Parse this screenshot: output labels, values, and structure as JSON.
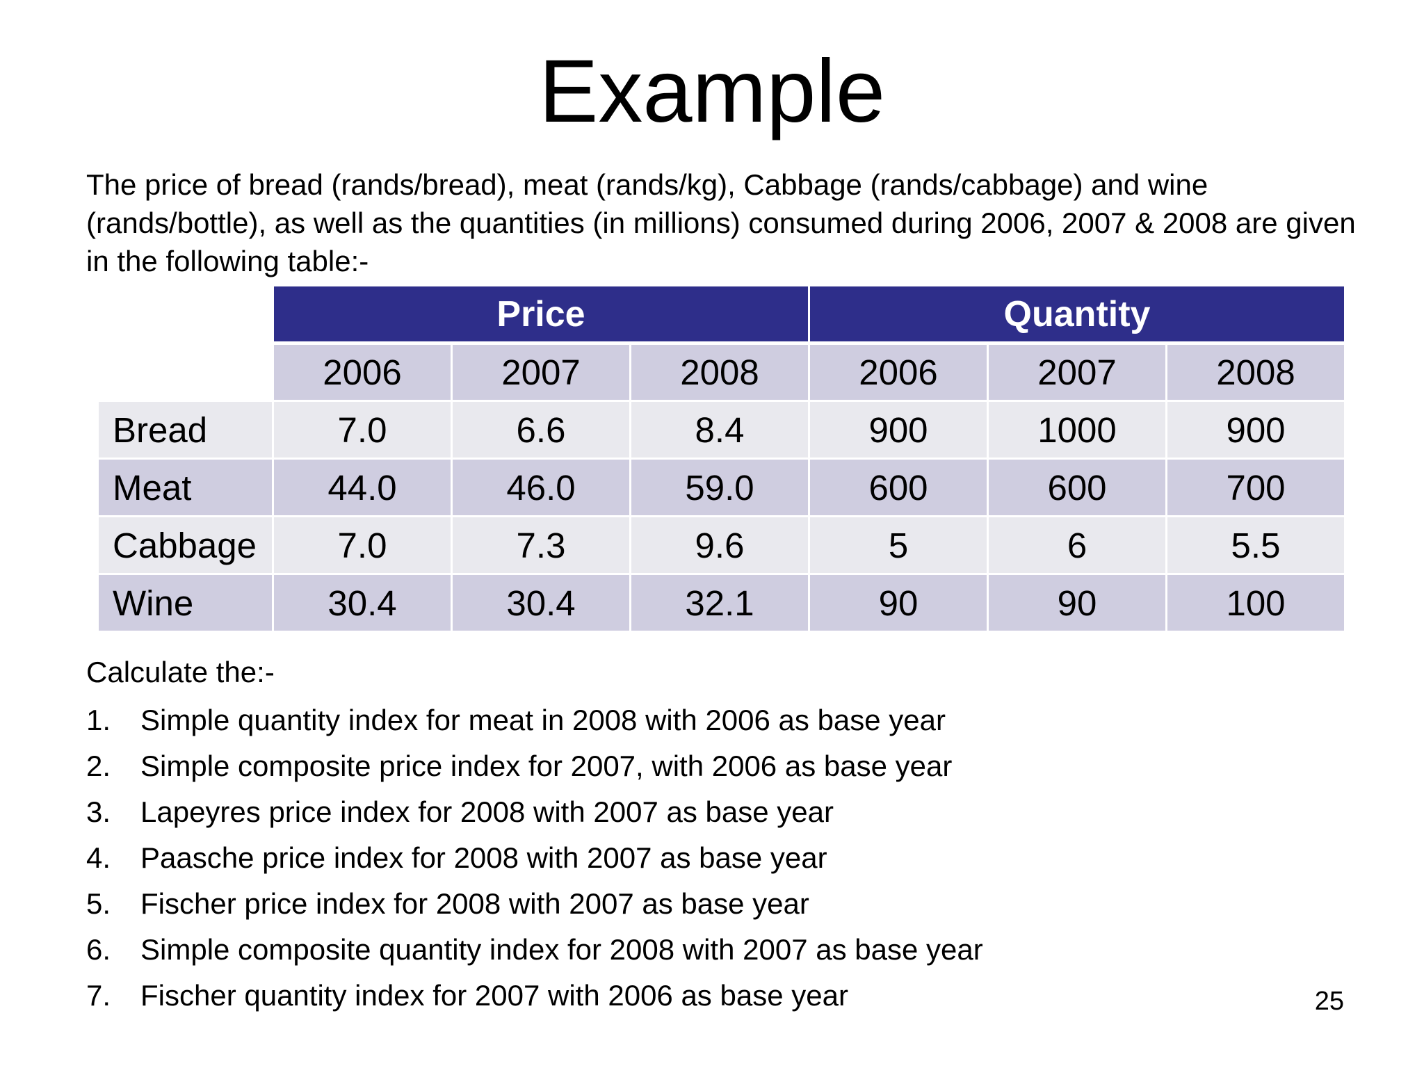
{
  "title": "Example",
  "intro": "The price of bread (rands/bread), meat (rands/kg), Cabbage (rands/cabbage) and wine (rands/bottle), as well as the quantities (in millions) consumed during 2006, 2007 & 2008 are given in the following table:-",
  "table": {
    "groups": [
      "Price",
      "Quantity"
    ],
    "years": [
      "2006",
      "2007",
      "2008",
      "2006",
      "2007",
      "2008"
    ],
    "rows": [
      {
        "label": "Bread",
        "values": [
          "7.0",
          "6.6",
          "8.4",
          "900",
          "1000",
          "900"
        ]
      },
      {
        "label": "Meat",
        "values": [
          "44.0",
          "46.0",
          "59.0",
          "600",
          "600",
          "700"
        ]
      },
      {
        "label": "Cabbage",
        "values": [
          "7.0",
          "7.3",
          "9.6",
          "5",
          "6",
          "5.5"
        ]
      },
      {
        "label": "Wine",
        "values": [
          "30.4",
          "30.4",
          "32.1",
          "90",
          "90",
          "100"
        ]
      }
    ]
  },
  "calculate_heading": "Calculate the:-",
  "tasks": [
    {
      "num": "1.",
      "text": "Simple quantity index for meat in 2008 with 2006 as base year"
    },
    {
      "num": "2.",
      "text": "Simple composite price index for 2007, with 2006 as base year"
    },
    {
      "num": "3.",
      "text": "Lapeyres price index for 2008 with 2007 as base year"
    },
    {
      "num": "4.",
      "text": "Paasche price index for 2008 with 2007 as base year"
    },
    {
      "num": "5.",
      "text": "Fischer price index for 2008 with 2007 as base year"
    },
    {
      "num": "6.",
      "text": "Simple composite quantity index for 2008 with 2007 as base year"
    },
    {
      "num": "7.",
      "text": "Fischer quantity index for 2007 with 2006 as base year"
    }
  ],
  "page_number": "25"
}
